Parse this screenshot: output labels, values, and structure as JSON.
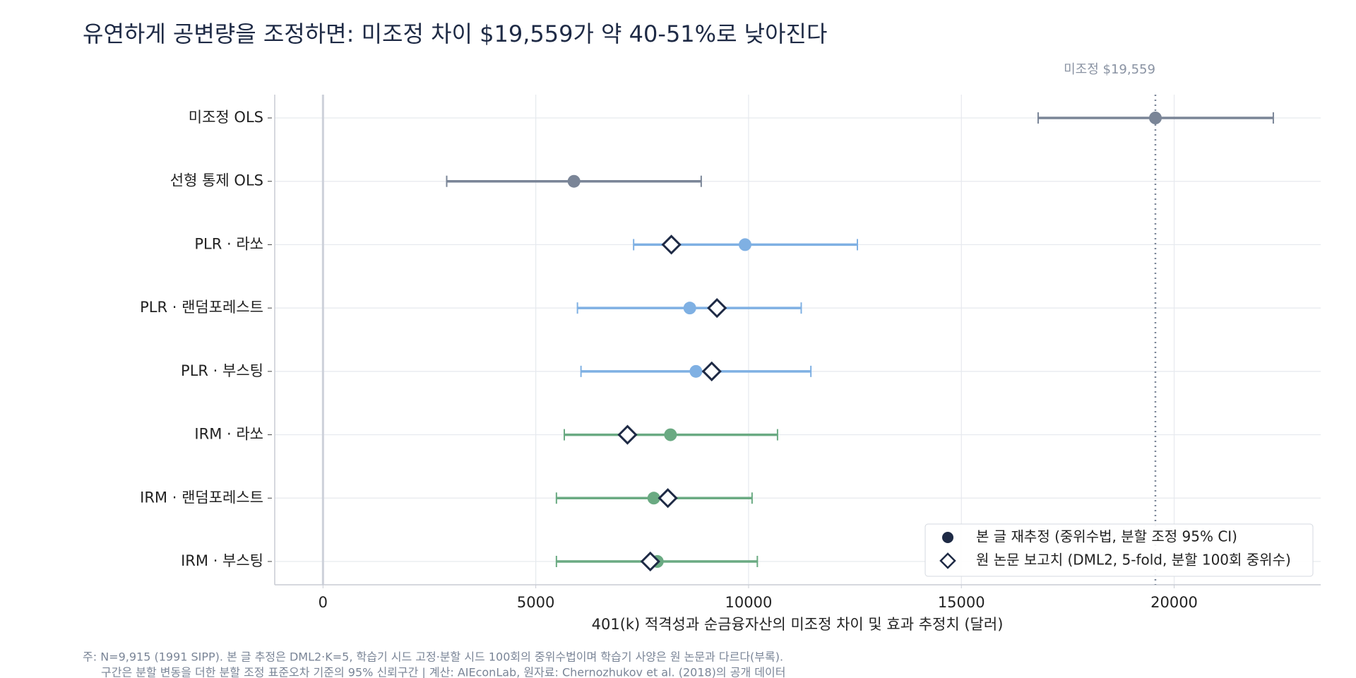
{
  "chart_data": {
    "type": "forest",
    "title": "유연하게 공변량을 조정하면: 미조정 차이 $19,559가 약 40-51%로 낮아진다",
    "x_label": "401(k) 적격성과 순금융자산의 미조정 차이 및 효과 추정치 (달러)",
    "categories": [
      "미조정 OLS",
      "선형 통제 OLS",
      "PLR · 라쏘",
      "PLR · 랜덤포레스트",
      "PLR · 부스팅",
      "IRM · 라쏘",
      "IRM · 랜덤포레스트",
      "IRM · 부스팅"
    ],
    "point_colors": [
      "#7a8597",
      "#7a8597",
      "#7fb0e3",
      "#7fb0e3",
      "#7fb0e3",
      "#6aaa82",
      "#6aaa82",
      "#6aaa82"
    ],
    "series": [
      {
        "name": "본 글 재추정 (중위수법, 분할 조정 95% CI)",
        "color": "#1e2a45",
        "values": [
          19559,
          5897,
          9918,
          8619,
          8763,
          8165,
          7773,
          7856
        ],
        "lower": [
          16804,
          2907,
          7299,
          5979,
          6062,
          5670,
          5485,
          5485
        ],
        "upper": [
          22330,
          8887,
          12557,
          11237,
          11464,
          10680,
          10082,
          10206
        ]
      },
      {
        "name": "원 논문 보고치 (DML2, 5-fold, 분할 100회 중위수)",
        "color": "#1e2a45",
        "values": [
          null,
          null,
          8186,
          9258,
          9134,
          7155,
          8103,
          7691
        ]
      }
    ],
    "reference_line": 19559,
    "reference_label": "미조정 $19,559",
    "xlim": [
      -1134,
      23443
    ],
    "xticks": [
      0,
      5000,
      10000,
      15000,
      20000
    ],
    "grid": true,
    "legend_position": "lower right",
    "notes": [
      "주: N=9,915 (1991 SIPP). 본 글 추정은 DML2·K=5, 학습기 시드 고정·분할 시드 100회의 중위수법이며 학습기 사양은 원 논문과 다르다(부록).",
      "구간은 분할 변동을 더한 분할 조정 표준오차 기준의 95% 신뢰구간  |  계산: AIEconLab, 원자료: Chernozhukov et al. (2018)의 공개 데이터"
    ]
  }
}
